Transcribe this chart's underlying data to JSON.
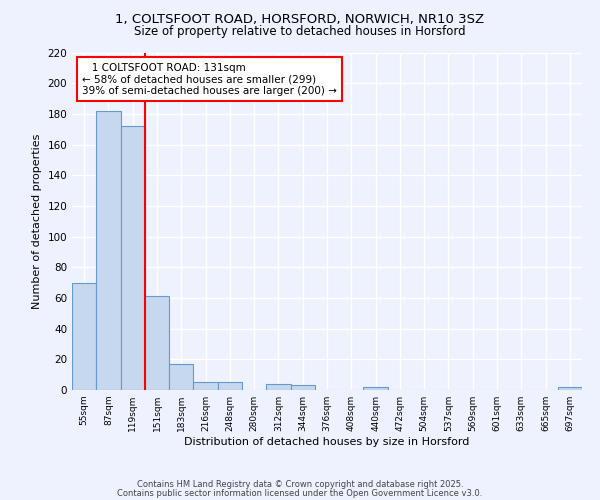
{
  "title": "1, COLTSFOOT ROAD, HORSFORD, NORWICH, NR10 3SZ",
  "subtitle": "Size of property relative to detached houses in Horsford",
  "xlabel": "Distribution of detached houses by size in Horsford",
  "ylabel": "Number of detached properties",
  "categories": [
    "55sqm",
    "87sqm",
    "119sqm",
    "151sqm",
    "183sqm",
    "216sqm",
    "248sqm",
    "280sqm",
    "312sqm",
    "344sqm",
    "376sqm",
    "408sqm",
    "440sqm",
    "472sqm",
    "504sqm",
    "537sqm",
    "569sqm",
    "601sqm",
    "633sqm",
    "665sqm",
    "697sqm"
  ],
  "values": [
    70,
    182,
    172,
    61,
    17,
    5,
    5,
    0,
    4,
    3,
    0,
    0,
    2,
    0,
    0,
    0,
    0,
    0,
    0,
    0,
    2
  ],
  "bar_color": "#c5d8ee",
  "bar_edge_color": "#6699cc",
  "redline_x": 2.5,
  "redline_label": "1 COLTSFOOT ROAD: 131sqm",
  "pct_smaller": "58% of detached houses are smaller (299)",
  "pct_larger": "39% of semi-detached houses are larger (200)",
  "ylim": [
    0,
    220
  ],
  "yticks": [
    0,
    20,
    40,
    60,
    80,
    100,
    120,
    140,
    160,
    180,
    200,
    220
  ],
  "background_color": "#eef2ff",
  "grid_color": "#d0d8f0",
  "footer_line1": "Contains HM Land Registry data © Crown copyright and database right 2025.",
  "footer_line2": "Contains public sector information licensed under the Open Government Licence v3.0."
}
